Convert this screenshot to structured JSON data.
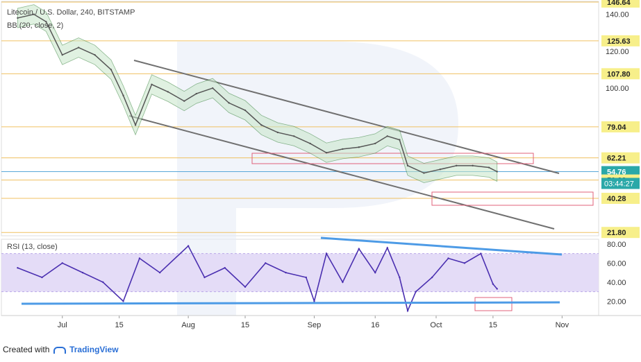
{
  "header": {
    "title": "Litecoin / U.S. Dollar, 240, BITSTAMP",
    "indicator": "BB (20, close, 2)"
  },
  "rsi_label": "RSI (13, close)",
  "footer": {
    "created_with": "Created with",
    "brand": "TradingView"
  },
  "colors": {
    "price_line": "#555555",
    "bollinger": "#2e7d32",
    "bollinger_fill": "#c8e6c9",
    "hline": "#f0c060",
    "current_line": "#59a7d8",
    "channel": "#707070",
    "zone": "#e0607a",
    "rsi": "#4a2fb0",
    "rsi_band": "#e4dcf7",
    "trendline": "#4d9be6",
    "label_bg": "#f7ef8a",
    "current_bg": "#2aa8a8"
  },
  "chart_data": [
    {
      "type": "line",
      "title": "Litecoin / U.S. Dollar, 240, BITSTAMP",
      "series": [
        {
          "name": "Litecoin / U.S. Dollar",
          "x": [
            "2019-06-20",
            "2019-06-24",
            "2019-06-27",
            "2019-07-01",
            "2019-07-05",
            "2019-07-09",
            "2019-07-13",
            "2019-07-16",
            "2019-07-19",
            "2019-07-23",
            "2019-07-27",
            "2019-07-31",
            "2019-08-03",
            "2019-08-07",
            "2019-08-11",
            "2019-08-15",
            "2019-08-19",
            "2019-08-23",
            "2019-08-27",
            "2019-08-31",
            "2019-09-04",
            "2019-09-08",
            "2019-09-12",
            "2019-09-16",
            "2019-09-19",
            "2019-09-22",
            "2019-09-24",
            "2019-09-28",
            "2019-10-02",
            "2019-10-06",
            "2019-10-10",
            "2019-10-14",
            "2019-10-16"
          ],
          "values": [
            138,
            140,
            136,
            118,
            122,
            118,
            110,
            96,
            80,
            102,
            98,
            93,
            97,
            100,
            92,
            88,
            80,
            76,
            74,
            70,
            65,
            67,
            68,
            70,
            74,
            72,
            58,
            54,
            56,
            58,
            58,
            57,
            54.76
          ]
        }
      ],
      "price_levels": [
        146.64,
        125.63,
        107.8,
        79.04,
        62.21,
        54.76,
        50.22,
        40.28,
        21.8
      ],
      "y_ticks": [
        140.0,
        120.0,
        100.0
      ],
      "current_price": "54.76",
      "countdown": "03:44:27",
      "ylim": [
        20,
        147
      ],
      "x_ticks": [
        "Jul",
        "15",
        "Aug",
        "15",
        "Sep",
        "16",
        "Oct",
        "15",
        "Nov"
      ]
    },
    {
      "type": "line",
      "title": "RSI (13, close)",
      "series": [
        {
          "name": "RSI (13, close)",
          "x": [
            "2019-06-20",
            "2019-06-26",
            "2019-07-01",
            "2019-07-06",
            "2019-07-11",
            "2019-07-16",
            "2019-07-20",
            "2019-07-25",
            "2019-08-01",
            "2019-08-05",
            "2019-08-10",
            "2019-08-15",
            "2019-08-20",
            "2019-08-25",
            "2019-08-30",
            "2019-09-01",
            "2019-09-04",
            "2019-09-08",
            "2019-09-12",
            "2019-09-16",
            "2019-09-19",
            "2019-09-22",
            "2019-09-24",
            "2019-09-26",
            "2019-09-30",
            "2019-10-04",
            "2019-10-08",
            "2019-10-12",
            "2019-10-15",
            "2019-10-16"
          ],
          "values": [
            55,
            45,
            60,
            50,
            40,
            20,
            65,
            50,
            78,
            45,
            55,
            35,
            60,
            50,
            45,
            20,
            70,
            40,
            75,
            50,
            76,
            45,
            10,
            30,
            45,
            65,
            60,
            70,
            38,
            33
          ]
        }
      ],
      "y_ticks": [
        80.0,
        60.0,
        40.0,
        20.0
      ],
      "bands": [
        30,
        70
      ],
      "ylim": [
        5,
        85
      ],
      "x_ticks": [
        "Jul",
        "15",
        "Aug",
        "15",
        "Sep",
        "16",
        "Oct",
        "15",
        "Nov"
      ]
    }
  ]
}
